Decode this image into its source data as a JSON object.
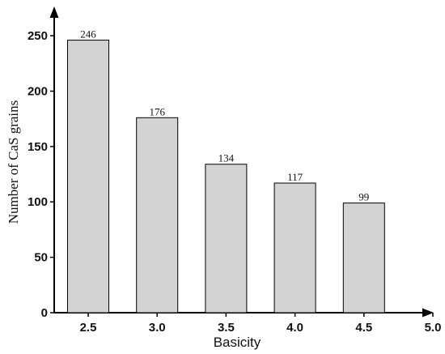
{
  "chart_data": {
    "type": "bar",
    "categories": [
      "2.5",
      "3.0",
      "3.5",
      "4.0",
      "4.5"
    ],
    "values": [
      246,
      176,
      134,
      117,
      99
    ],
    "data_labels": [
      "246",
      "176",
      "134",
      "117",
      "99"
    ],
    "x_tick_labels": [
      "2.5",
      "3.0",
      "3.5",
      "4.0",
      "4.5",
      "5.0"
    ],
    "y_tick_labels": [
      "0",
      "50",
      "100",
      "150",
      "200",
      "250"
    ],
    "y_ticks": [
      0,
      50,
      100,
      150,
      200,
      250
    ],
    "xlabel": "Basicity",
    "ylabel": "Number of CaS grains",
    "ylim": [
      0,
      270
    ],
    "bar_color": "#d3d3d3",
    "edge_color": "#000000",
    "grid": false
  }
}
